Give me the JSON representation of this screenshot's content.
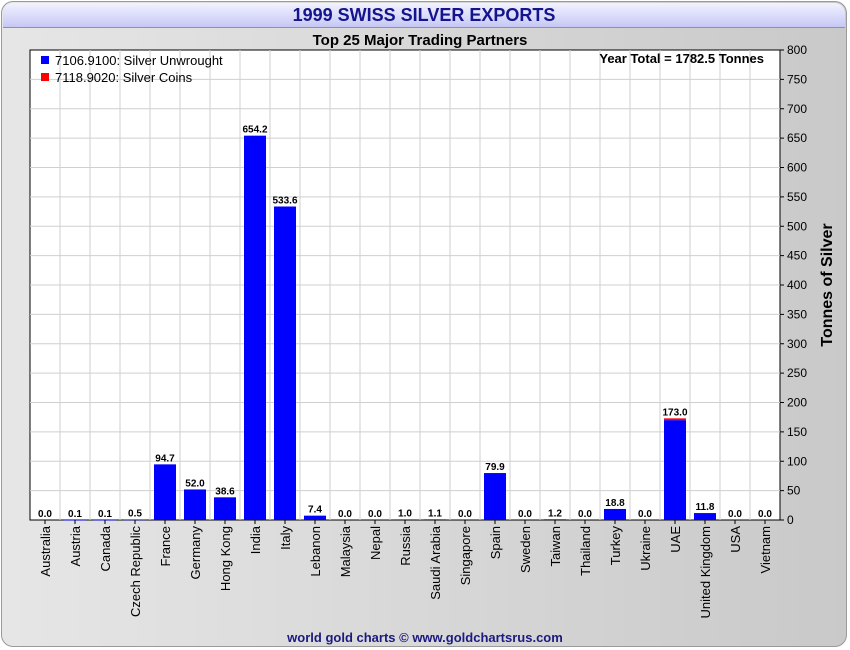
{
  "title": "1999 SWISS SILVER EXPORTS",
  "footer": "world gold charts © www.goldchartsrus.com",
  "colors": {
    "unwrought": "#0000ff",
    "coins": "#ff0000",
    "title": "#14148c"
  },
  "chart_data": {
    "type": "bar",
    "stacked": true,
    "title": "Top 25 Major Trading Partners",
    "annotation": "Year Total = 1782.5 Tonnes",
    "ylabel": "Tonnes of Silver",
    "ylim": [
      0,
      800
    ],
    "ytick_step": 50,
    "y_axis_position": "right",
    "grid": true,
    "legend_position": "top-left",
    "categories": [
      "Australia",
      "Austria",
      "Canada",
      "Czech Republic",
      "France",
      "Germany",
      "Hong Kong",
      "India",
      "Italy",
      "Lebanon",
      "Malaysia",
      "Nepal",
      "Russia",
      "Saudi Arabia",
      "Singapore",
      "Spain",
      "Sweden",
      "Taiwan",
      "Thailand",
      "Turkey",
      "Ukraine",
      "UAE",
      "United Kingdom",
      "USA",
      "Vietnam"
    ],
    "series": [
      {
        "name": "7106.9100: Silver Unwrought",
        "color": "#0000ff",
        "values": [
          0.0,
          0.1,
          0.1,
          0.5,
          94.7,
          52.0,
          38.6,
          654.2,
          533.6,
          7.4,
          0.0,
          0.0,
          1.0,
          1.1,
          0.0,
          79.9,
          0.0,
          1.2,
          0.0,
          18.8,
          0.0,
          170.0,
          11.8,
          0.0,
          0.0
        ]
      },
      {
        "name": "7118.9020: Silver Coins",
        "color": "#ff0000",
        "values": [
          0,
          0,
          0,
          0,
          0,
          0,
          0,
          0,
          0,
          0,
          0,
          0,
          0,
          0,
          0,
          0,
          0,
          0,
          0,
          0,
          0,
          3.0,
          0,
          0,
          0
        ]
      }
    ],
    "totals": [
      "0.0",
      "0.1",
      "0.1",
      "0.5",
      "94.7",
      "52.0",
      "38.6",
      "654.2",
      "533.6",
      "7.4",
      "0.0",
      "0.0",
      "1.0",
      "1.1",
      "0.0",
      "79.9",
      "0.0",
      "1.2",
      "0.0",
      "18.8",
      "0.0",
      "173.0",
      "11.8",
      "0.0",
      "0.0"
    ]
  }
}
